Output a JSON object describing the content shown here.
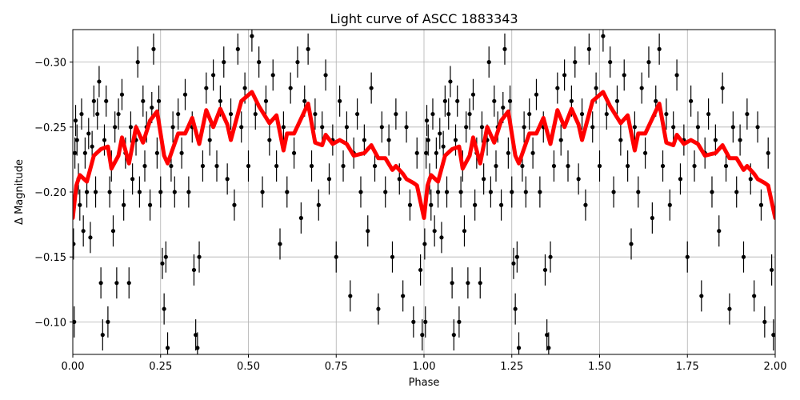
{
  "chart_data": {
    "type": "scatter",
    "title": "Light curve of ASCC 1883343",
    "xlabel": "Phase",
    "ylabel": "Δ Magnitude",
    "xlim": [
      0,
      2
    ],
    "ylim": [
      -0.075,
      -0.325
    ],
    "y_inverted": true,
    "grid": true,
    "xticks": [
      "0.00",
      "0.25",
      "0.50",
      "0.75",
      "1.00",
      "1.25",
      "1.50",
      "1.75",
      "2.00"
    ],
    "xtick_values": [
      0,
      0.25,
      0.5,
      0.75,
      1,
      1.25,
      1.5,
      1.75,
      2
    ],
    "yticks": [
      "−0.30",
      "−0.25",
      "−0.20",
      "−0.15",
      "−0.10"
    ],
    "ytick_values": [
      -0.3,
      -0.25,
      -0.2,
      -0.15,
      -0.1
    ],
    "period_repeat": 1,
    "colors": {
      "points": "#000000",
      "model": "#ff0000",
      "grid": "#b0b0b0"
    },
    "observations": {
      "typical_error": 0.012,
      "points_phase_0_to_1": [
        [
          0.002,
          -0.16
        ],
        [
          0.004,
          -0.1
        ],
        [
          0.006,
          -0.23
        ],
        [
          0.008,
          -0.255
        ],
        [
          0.012,
          -0.24
        ],
        [
          0.016,
          -0.21
        ],
        [
          0.02,
          -0.19
        ],
        [
          0.025,
          -0.26
        ],
        [
          0.03,
          -0.17
        ],
        [
          0.035,
          -0.23
        ],
        [
          0.04,
          -0.2
        ],
        [
          0.045,
          -0.245
        ],
        [
          0.05,
          -0.165
        ],
        [
          0.055,
          -0.235
        ],
        [
          0.06,
          -0.27
        ],
        [
          0.065,
          -0.2
        ],
        [
          0.07,
          -0.26
        ],
        [
          0.075,
          -0.285
        ],
        [
          0.08,
          -0.13
        ],
        [
          0.085,
          -0.09
        ],
        [
          0.09,
          -0.24
        ],
        [
          0.095,
          -0.27
        ],
        [
          0.1,
          -0.1
        ],
        [
          0.105,
          -0.2
        ],
        [
          0.11,
          -0.22
        ],
        [
          0.115,
          -0.17
        ],
        [
          0.12,
          -0.25
        ],
        [
          0.125,
          -0.13
        ],
        [
          0.13,
          -0.26
        ],
        [
          0.14,
          -0.275
        ],
        [
          0.145,
          -0.19
        ],
        [
          0.15,
          -0.23
        ],
        [
          0.16,
          -0.13
        ],
        [
          0.165,
          -0.25
        ],
        [
          0.17,
          -0.21
        ],
        [
          0.18,
          -0.24
        ],
        [
          0.185,
          -0.3
        ],
        [
          0.19,
          -0.2
        ],
        [
          0.2,
          -0.27
        ],
        [
          0.205,
          -0.22
        ],
        [
          0.21,
          -0.25
        ],
        [
          0.22,
          -0.19
        ],
        [
          0.225,
          -0.265
        ],
        [
          0.23,
          -0.31
        ],
        [
          0.24,
          -0.23
        ],
        [
          0.245,
          -0.27
        ],
        [
          0.25,
          -0.2
        ],
        [
          0.255,
          -0.145
        ],
        [
          0.26,
          -0.11
        ],
        [
          0.265,
          -0.15
        ],
        [
          0.27,
          -0.08
        ],
        [
          0.28,
          -0.22
        ],
        [
          0.285,
          -0.25
        ],
        [
          0.29,
          -0.2
        ],
        [
          0.3,
          -0.26
        ],
        [
          0.31,
          -0.23
        ],
        [
          0.32,
          -0.275
        ],
        [
          0.33,
          -0.2
        ],
        [
          0.34,
          -0.25
        ],
        [
          0.345,
          -0.14
        ],
        [
          0.35,
          -0.09
        ],
        [
          0.355,
          -0.08
        ],
        [
          0.36,
          -0.15
        ],
        [
          0.37,
          -0.22
        ],
        [
          0.38,
          -0.28
        ],
        [
          0.39,
          -0.24
        ],
        [
          0.4,
          -0.29
        ],
        [
          0.41,
          -0.22
        ],
        [
          0.42,
          -0.27
        ],
        [
          0.43,
          -0.3
        ],
        [
          0.44,
          -0.21
        ],
        [
          0.45,
          -0.26
        ],
        [
          0.46,
          -0.19
        ],
        [
          0.47,
          -0.31
        ],
        [
          0.48,
          -0.25
        ],
        [
          0.49,
          -0.28
        ],
        [
          0.5,
          -0.22
        ],
        [
          0.51,
          -0.32
        ],
        [
          0.52,
          -0.26
        ],
        [
          0.53,
          -0.3
        ],
        [
          0.54,
          -0.2
        ],
        [
          0.55,
          -0.27
        ],
        [
          0.56,
          -0.24
        ],
        [
          0.57,
          -0.29
        ],
        [
          0.58,
          -0.22
        ],
        [
          0.59,
          -0.16
        ],
        [
          0.6,
          -0.25
        ],
        [
          0.61,
          -0.2
        ],
        [
          0.62,
          -0.28
        ],
        [
          0.63,
          -0.23
        ],
        [
          0.64,
          -0.3
        ],
        [
          0.65,
          -0.18
        ],
        [
          0.66,
          -0.27
        ],
        [
          0.67,
          -0.31
        ],
        [
          0.68,
          -0.22
        ],
        [
          0.69,
          -0.26
        ],
        [
          0.7,
          -0.19
        ],
        [
          0.71,
          -0.25
        ],
        [
          0.72,
          -0.29
        ],
        [
          0.73,
          -0.21
        ],
        [
          0.74,
          -0.24
        ],
        [
          0.75,
          -0.15
        ],
        [
          0.76,
          -0.27
        ],
        [
          0.77,
          -0.22
        ],
        [
          0.78,
          -0.25
        ],
        [
          0.79,
          -0.12
        ],
        [
          0.8,
          -0.23
        ],
        [
          0.81,
          -0.26
        ],
        [
          0.82,
          -0.2
        ],
        [
          0.83,
          -0.24
        ],
        [
          0.84,
          -0.17
        ],
        [
          0.85,
          -0.28
        ],
        [
          0.86,
          -0.22
        ],
        [
          0.87,
          -0.11
        ],
        [
          0.88,
          -0.25
        ],
        [
          0.89,
          -0.2
        ],
        [
          0.9,
          -0.24
        ],
        [
          0.91,
          -0.15
        ],
        [
          0.92,
          -0.26
        ],
        [
          0.93,
          -0.21
        ],
        [
          0.94,
          -0.12
        ],
        [
          0.95,
          -0.25
        ],
        [
          0.96,
          -0.19
        ],
        [
          0.97,
          -0.1
        ],
        [
          0.98,
          -0.23
        ],
        [
          0.99,
          -0.14
        ],
        [
          0.995,
          -0.09
        ]
      ]
    },
    "model_curve_phase_0_to_1": [
      [
        0.0,
        -0.18
      ],
      [
        0.01,
        -0.205
      ],
      [
        0.02,
        -0.213
      ],
      [
        0.04,
        -0.208
      ],
      [
        0.06,
        -0.228
      ],
      [
        0.08,
        -0.233
      ],
      [
        0.1,
        -0.235
      ],
      [
        0.11,
        -0.218
      ],
      [
        0.13,
        -0.228
      ],
      [
        0.14,
        -0.242
      ],
      [
        0.16,
        -0.222
      ],
      [
        0.18,
        -0.25
      ],
      [
        0.2,
        -0.238
      ],
      [
        0.22,
        -0.255
      ],
      [
        0.24,
        -0.262
      ],
      [
        0.26,
        -0.228
      ],
      [
        0.27,
        -0.222
      ],
      [
        0.3,
        -0.245
      ],
      [
        0.32,
        -0.245
      ],
      [
        0.34,
        -0.257
      ],
      [
        0.36,
        -0.237
      ],
      [
        0.38,
        -0.263
      ],
      [
        0.4,
        -0.25
      ],
      [
        0.42,
        -0.264
      ],
      [
        0.44,
        -0.252
      ],
      [
        0.45,
        -0.24
      ],
      [
        0.48,
        -0.27
      ],
      [
        0.51,
        -0.277
      ],
      [
        0.53,
        -0.266
      ],
      [
        0.56,
        -0.253
      ],
      [
        0.58,
        -0.259
      ],
      [
        0.6,
        -0.232
      ],
      [
        0.61,
        -0.245
      ],
      [
        0.63,
        -0.245
      ],
      [
        0.67,
        -0.268
      ],
      [
        0.69,
        -0.238
      ],
      [
        0.71,
        -0.236
      ],
      [
        0.72,
        -0.244
      ],
      [
        0.74,
        -0.237
      ],
      [
        0.76,
        -0.24
      ],
      [
        0.78,
        -0.237
      ],
      [
        0.8,
        -0.228
      ],
      [
        0.83,
        -0.23
      ],
      [
        0.85,
        -0.236
      ],
      [
        0.87,
        -0.226
      ],
      [
        0.89,
        -0.226
      ],
      [
        0.91,
        -0.217
      ],
      [
        0.92,
        -0.22
      ],
      [
        0.94,
        -0.214
      ],
      [
        0.95,
        -0.21
      ],
      [
        0.97,
        -0.207
      ],
      [
        0.98,
        -0.205
      ],
      [
        1.0,
        -0.18
      ]
    ]
  }
}
